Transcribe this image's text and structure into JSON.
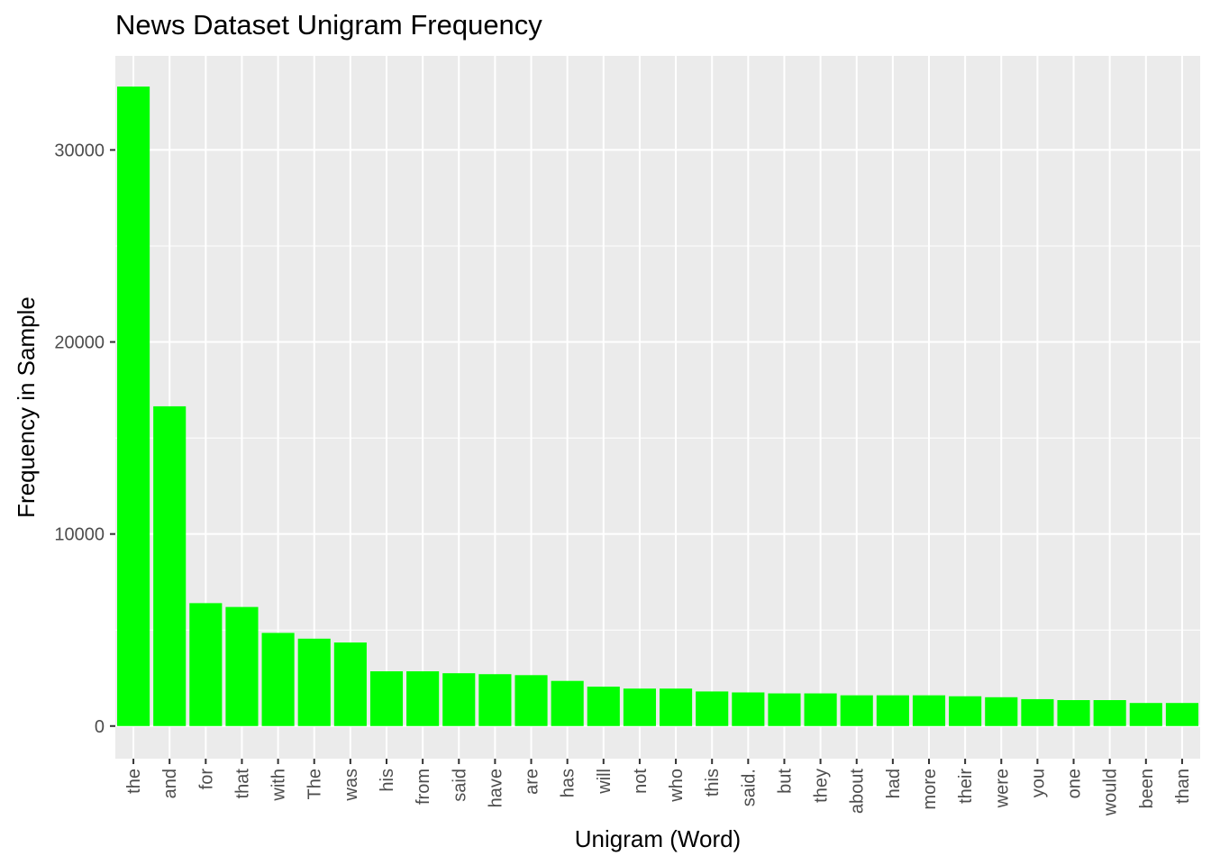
{
  "chart_data": {
    "type": "bar",
    "title": "News Dataset Unigram Frequency",
    "xlabel": "Unigram (Word)",
    "ylabel": "Frequency in Sample",
    "ylim": [
      -1700,
      34900
    ],
    "yticks": [
      0,
      10000,
      20000,
      30000
    ],
    "grid": true,
    "bar_color": "#00ff00",
    "panel_background": "#ebebeb",
    "grid_color": "#ffffff",
    "categories": [
      "the",
      "and",
      "for",
      "that",
      "with",
      "The",
      "was",
      "his",
      "from",
      "said",
      "have",
      "are",
      "has",
      "will",
      "not",
      "who",
      "this",
      "said.",
      "but",
      "they",
      "about",
      "had",
      "more",
      "their",
      "were",
      "you",
      "one",
      "would",
      "been",
      "than"
    ],
    "values": [
      33300,
      16650,
      6400,
      6200,
      4850,
      4550,
      4350,
      2850,
      2850,
      2750,
      2700,
      2650,
      2350,
      2050,
      1950,
      1950,
      1800,
      1750,
      1700,
      1700,
      1600,
      1600,
      1600,
      1550,
      1500,
      1400,
      1350,
      1350,
      1200,
      1200
    ]
  }
}
